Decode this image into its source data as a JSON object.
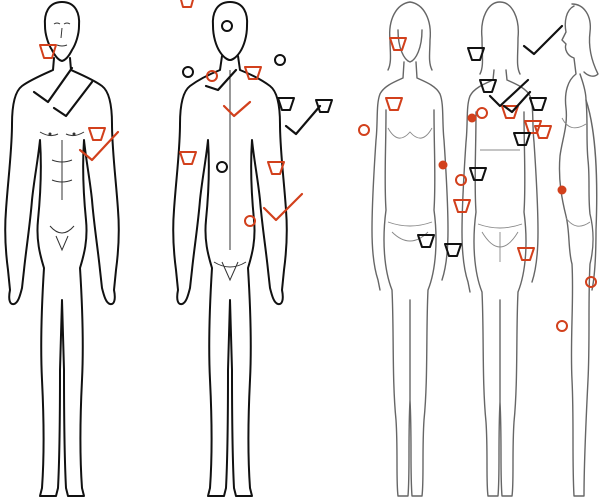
{
  "figures": [
    {
      "name": "male-front",
      "style": "line-drawing"
    },
    {
      "name": "male-back",
      "style": "line-drawing"
    },
    {
      "name": "female-front",
      "style": "sketch"
    },
    {
      "name": "female-back",
      "style": "sketch"
    },
    {
      "name": "female-side",
      "style": "sketch"
    }
  ],
  "marker_colors": {
    "red": "#d2401c",
    "black": "#111111"
  },
  "marker_legend": {
    "trapezoid": "shape-mark",
    "check": "check-mark",
    "open-circle": "open-circle-mark",
    "filled-circle": "filled-circle-mark"
  }
}
